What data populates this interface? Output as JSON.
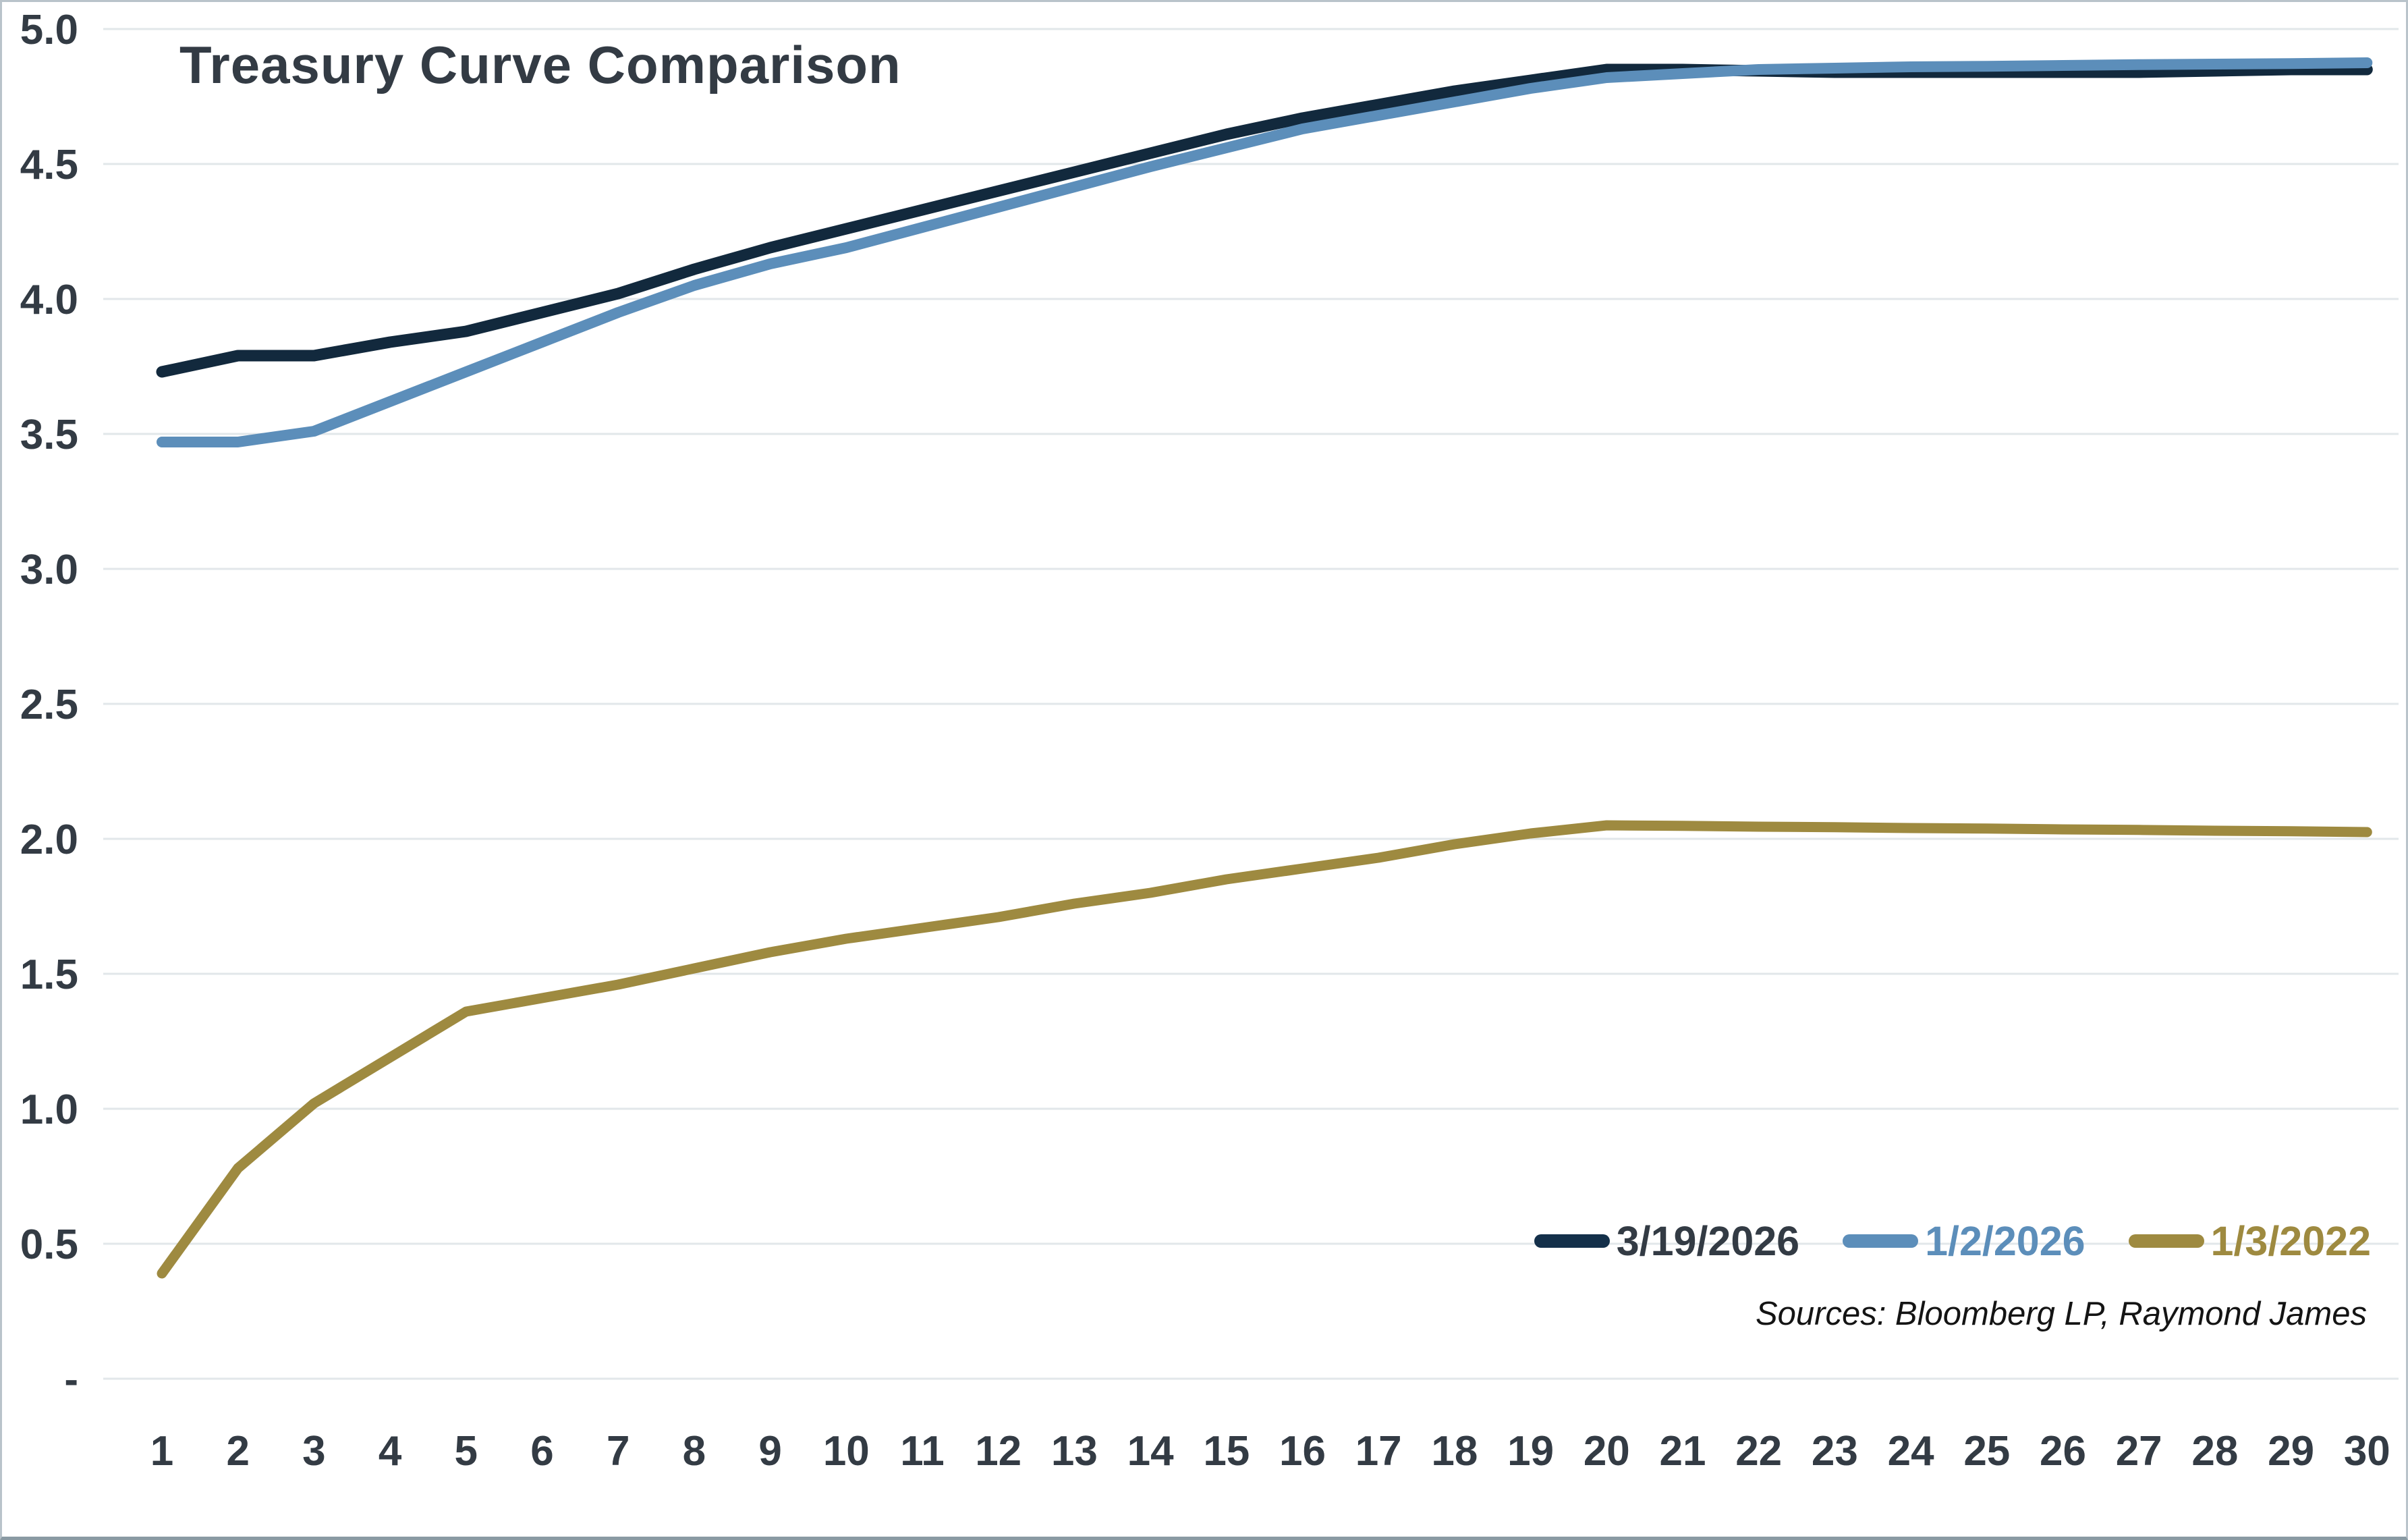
{
  "page": {
    "title": "Treasury Curve Comparison",
    "sources": "Sources: Bloomberg LP, Raymond James"
  },
  "colors": {
    "background": "#ffffff",
    "title_text": "#333b44",
    "axis_text": "#333b44",
    "gridline": "#e2e7ea",
    "frame_border": "#b9c3ca",
    "frame_bottom_border": "#8a9aa3",
    "series_navy": "#12293d",
    "series_blue": "#5c8eba",
    "series_gold": "#9e8a40"
  },
  "legend": {
    "position": "bottom-right",
    "items": [
      {
        "label": "3/19/2026",
        "swatch_color": "#14304a",
        "text_color": "#333b44"
      },
      {
        "label": "1/2/2026",
        "swatch_color": "#5c8eba",
        "text_color": "#5c8eba"
      },
      {
        "label": "1/3/2022",
        "swatch_color": "#9e8a40",
        "text_color": "#9e8a40"
      }
    ]
  },
  "chart_data": {
    "type": "line",
    "title": "Treasury Curve Comparison",
    "xlabel": "",
    "ylabel": "",
    "x": [
      1,
      2,
      3,
      4,
      5,
      6,
      7,
      8,
      9,
      10,
      11,
      12,
      13,
      14,
      15,
      16,
      17,
      18,
      19,
      20,
      21,
      22,
      23,
      24,
      25,
      26,
      27,
      28,
      29,
      30
    ],
    "x_tick_labels": [
      "1",
      "2",
      "3",
      "4",
      "5",
      "6",
      "7",
      "8",
      "9",
      "10",
      "11",
      "12",
      "13",
      "14",
      "15",
      "16",
      "17",
      "18",
      "19",
      "20",
      "21",
      "22",
      "23",
      "24",
      "25",
      "26",
      "27",
      "28",
      "29",
      "30"
    ],
    "y_tick_labels_top_to_bottom": [
      "5.0",
      "4.5",
      "4.0",
      "3.5",
      "3.0",
      "2.5",
      "2.0",
      "1.5",
      "1.0",
      "0.5",
      "-"
    ],
    "ylim": [
      0,
      5
    ],
    "grid": "horizontal",
    "legend_position": "bottom-right",
    "series": [
      {
        "name": "3/19/2026",
        "color": "#12293d",
        "stroke_width": 17,
        "values": [
          3.73,
          3.79,
          3.79,
          3.84,
          3.88,
          3.95,
          4.02,
          4.11,
          4.19,
          4.26,
          4.33,
          4.4,
          4.47,
          4.54,
          4.61,
          4.67,
          4.72,
          4.77,
          4.81,
          4.85,
          4.85,
          4.845,
          4.84,
          4.84,
          4.84,
          4.84,
          4.84,
          4.845,
          4.85,
          4.85
        ]
      },
      {
        "name": "1/2/2026",
        "color": "#5c8eba",
        "stroke_width": 16,
        "values": [
          3.47,
          3.47,
          3.51,
          3.62,
          3.73,
          3.84,
          3.95,
          4.05,
          4.13,
          4.19,
          4.265,
          4.34,
          4.415,
          4.49,
          4.56,
          4.63,
          4.68,
          4.73,
          4.78,
          4.82,
          4.835,
          4.85,
          4.855,
          4.86,
          4.862,
          4.865,
          4.868,
          4.87,
          4.872,
          4.875
        ]
      },
      {
        "name": "1/3/2022",
        "color": "#9e8a40",
        "stroke_width": 15,
        "values": [
          0.39,
          0.78,
          1.02,
          1.19,
          1.36,
          1.41,
          1.46,
          1.52,
          1.58,
          1.63,
          1.67,
          1.71,
          1.76,
          1.8,
          1.85,
          1.89,
          1.93,
          1.98,
          2.02,
          2.05,
          2.048,
          2.045,
          2.043,
          2.04,
          2.038,
          2.035,
          2.033,
          2.03,
          2.028,
          2.025
        ]
      }
    ],
    "annotations": [
      "Sources: Bloomberg LP, Raymond James"
    ]
  }
}
